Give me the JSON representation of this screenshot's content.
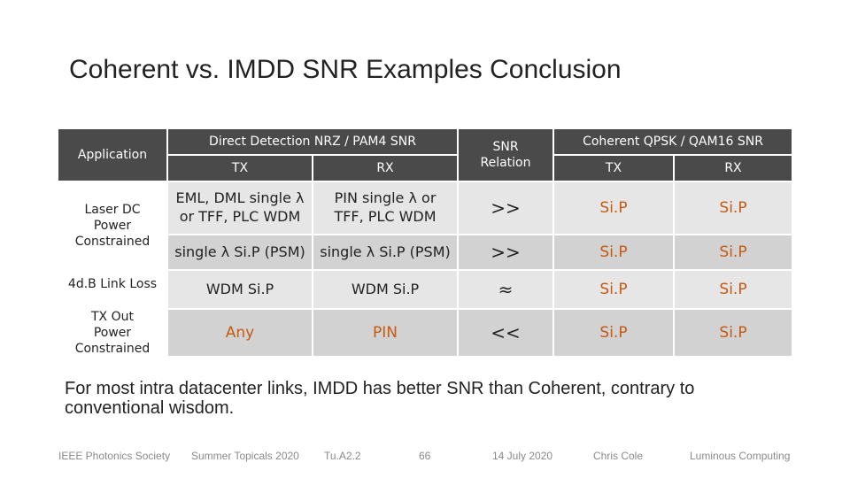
{
  "slide": {
    "title": "Coherent vs. IMDD SNR Examples Conclusion",
    "conclusion": "For most intra datacenter links, IMDD has better SNR than Coherent, contrary to conventional wisdom."
  },
  "table": {
    "header": {
      "application": "Application",
      "dd_group": "Direct Detection NRZ / PAM4 SNR",
      "dd_tx": "TX",
      "dd_rx": "RX",
      "relation": "SNR Relation",
      "coh_group": "Coherent QPSK / QAM16 SNR",
      "coh_tx": "TX",
      "coh_rx": "RX"
    },
    "laser_group_label": "Laser DC Power Constrained",
    "rows": [
      {
        "dd_tx": "EML, DML single λ or TFF, PLC WDM",
        "dd_rx": "PIN single λ or TFF, PLC WDM",
        "relation": ">>",
        "coh_tx": "Si.P",
        "coh_rx": "Si.P"
      },
      {
        "dd_tx": "single λ Si.P (PSM)",
        "dd_rx": "single λ Si.P (PSM)",
        "relation": ">>",
        "coh_tx": "Si.P",
        "coh_rx": "Si.P"
      },
      {
        "application": "4d.B Link Loss",
        "dd_tx": "WDM Si.P",
        "dd_rx": "WDM Si.P",
        "relation": "≈",
        "coh_tx": "Si.P",
        "coh_rx": "Si.P"
      },
      {
        "application": "TX Out Power Constrained",
        "dd_tx": "Any",
        "dd_rx": "PIN",
        "relation": "<<",
        "coh_tx": "Si.P",
        "coh_rx": "Si.P"
      }
    ]
  },
  "footer": {
    "society": "IEEE Photonics Society",
    "event": "Summer Topicals 2020",
    "session": "Tu.A2.2",
    "page": "66",
    "date": "14 July 2020",
    "author": "Chris Cole",
    "company": "Luminous Computing"
  },
  "colors": {
    "header_bg": "#4a4a4a",
    "row_light": "#e6e6e6",
    "row_mid": "#d2d2d2",
    "accent_orange": "#c55a11"
  }
}
